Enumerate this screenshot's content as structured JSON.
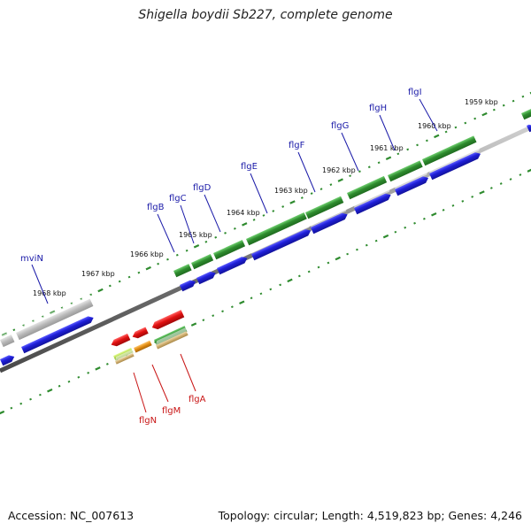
{
  "title": "Shigella boydii Sb227, complete genome",
  "accession": "Accession: NC_007613",
  "summary": "Topology: circular; Length: 4,519,823 bp; Genes: 4,246",
  "ruler_labels": [
    "1968 kbp",
    "1967 kbp",
    "1966 kbp",
    "1965 kbp",
    "1964 kbp",
    "1963 kbp",
    "1962 kbp",
    "1961 kbp",
    "1960 kbp",
    "1959 kbp"
  ],
  "forward_genes": [
    "mviN",
    "flgB",
    "flgC",
    "flgD",
    "flgE",
    "flgF",
    "flgG",
    "flgH",
    "flgI"
  ],
  "reverse_genes": [
    "flgN",
    "flgM",
    "flgA"
  ],
  "colors": {
    "cds_forward": "#2e8b2e",
    "cds_blue": "#1f1fd8",
    "cds_gray": "#b8b8b8",
    "cds_red": "#e01010",
    "forward_label": "#1a1aa8",
    "reverse_label": "#c81414",
    "ruler_dot": "#2e8b2e",
    "backbone": "#808080"
  }
}
